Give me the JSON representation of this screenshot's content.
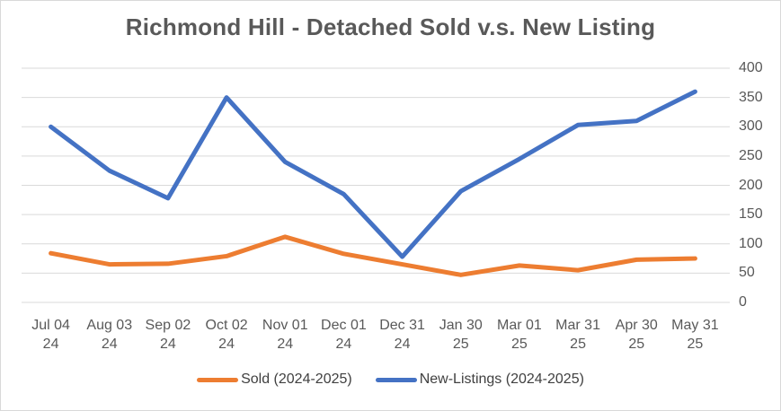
{
  "title": "Richmond Hill - Detached Sold v.s. New Listing",
  "chart_data": {
    "type": "line",
    "title": "Richmond Hill - Detached Sold v.s. New Listing",
    "categories": [
      "Jul 04 24",
      "Aug 03 24",
      "Sep 02 24",
      "Oct 02 24",
      "Nov 01 24",
      "Dec 01 24",
      "Dec 31 24",
      "Jan 30 25",
      "Mar 01 25",
      "Mar 31 25",
      "Apr 30 25",
      "May 31 25"
    ],
    "series": [
      {
        "name": "Sold (2024-2025)",
        "color": "#ED7D31",
        "values": [
          84,
          65,
          66,
          79,
          112,
          83,
          65,
          47,
          63,
          55,
          73,
          75
        ]
      },
      {
        "name": "New-Listings (2024-2025)",
        "color": "#4472C4",
        "values": [
          300,
          225,
          178,
          350,
          240,
          185,
          78,
          190,
          245,
          303,
          310,
          360
        ]
      }
    ],
    "y_axis": {
      "min": 0,
      "max": 400,
      "step": 50,
      "side": "right",
      "ticks": [
        0,
        50,
        100,
        150,
        200,
        250,
        300,
        350,
        400
      ]
    },
    "x_axis": {
      "label_lines": 2
    },
    "grid": true,
    "legend_position": "bottom"
  },
  "colors": {
    "text": "#595959",
    "grid": "#D9D9D9",
    "border": "#D9D9D9",
    "background": "#FFFFFF"
  }
}
